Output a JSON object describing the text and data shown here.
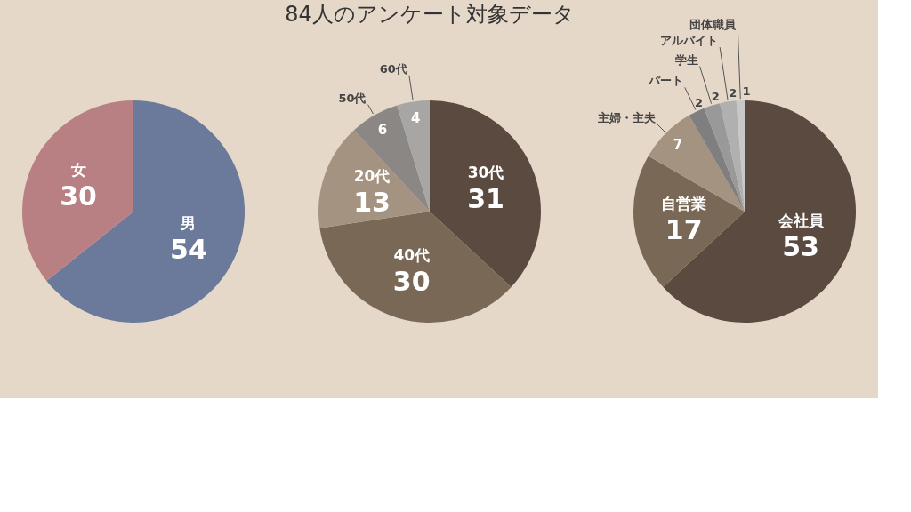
{
  "chart_data": [
    {
      "type": "pie",
      "categories": [
        "男",
        "女"
      ],
      "values": [
        54,
        30
      ],
      "colors": [
        "#6b7a9b",
        "#b98084"
      ],
      "data_labels": true
    },
    {
      "type": "pie",
      "title": "84人のアンケート対象データ",
      "categories": [
        "30代",
        "40代",
        "20代",
        "50代",
        "60代"
      ],
      "values": [
        31,
        30,
        13,
        6,
        4
      ],
      "colors": [
        "#5a4a40",
        "#7a6857",
        "#a39380",
        "#8a8784",
        "#a8a6a4"
      ],
      "data_labels": true
    },
    {
      "type": "pie",
      "categories": [
        "会社員",
        "自営業",
        "主婦・主夫",
        "パート",
        "学生",
        "アルバイト",
        "団体職員"
      ],
      "values": [
        53,
        17,
        7,
        2,
        2,
        2,
        1
      ],
      "colors": [
        "#5a4a40",
        "#7a6857",
        "#a39380",
        "#7f7f7f",
        "#999999",
        "#b0b0b0",
        "#c8c8c8"
      ],
      "data_labels": true
    }
  ]
}
